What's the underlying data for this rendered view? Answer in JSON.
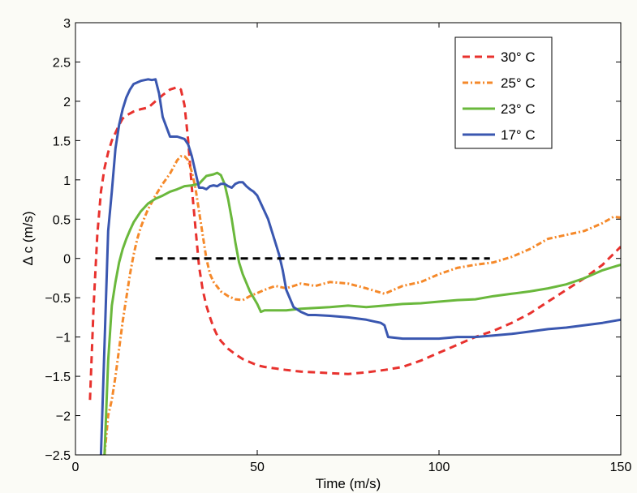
{
  "chart_data": {
    "type": "line",
    "xlabel": "Time (m/s)",
    "ylabel": "Δ c (m/s)",
    "xlim": [
      0,
      150
    ],
    "ylim": [
      -2.5,
      3
    ],
    "xticks": [
      "0",
      "50",
      "100",
      "150"
    ],
    "xtick_values": [
      0,
      50,
      100,
      150
    ],
    "yticks": [
      "−2.5",
      "−2",
      "−1.5",
      "−1",
      "−0.5",
      "0",
      "0.5",
      "1",
      "1.5",
      "2",
      "2.5",
      "3"
    ],
    "ytick_values": [
      -2.5,
      -2,
      -1.5,
      -1,
      -0.5,
      0,
      0.5,
      1,
      1.5,
      2,
      2.5,
      3
    ],
    "grid": false,
    "legend_position": "top-right",
    "reference_line": {
      "x": [
        22,
        114
      ],
      "y": 0,
      "color": "#000000",
      "style": "dashed"
    },
    "series": [
      {
        "name": "30° C",
        "color": "#e8322e",
        "style": "dashed",
        "x": [
          4,
          5,
          6,
          7,
          8,
          9,
          10,
          11,
          12,
          13,
          14,
          16,
          18,
          20,
          22,
          24,
          26,
          28,
          29,
          30,
          31,
          32,
          33,
          34,
          35,
          36,
          37,
          38,
          39,
          40,
          42,
          44,
          46,
          48,
          50,
          52,
          55,
          58,
          62,
          66,
          70,
          75,
          80,
          85,
          90,
          95,
          100,
          105,
          110,
          115,
          120,
          125,
          130,
          135,
          140,
          145,
          150
        ],
        "y": [
          -1.8,
          -0.6,
          0.3,
          0.85,
          1.15,
          1.35,
          1.5,
          1.6,
          1.7,
          1.78,
          1.82,
          1.87,
          1.9,
          1.92,
          2.0,
          2.08,
          2.15,
          2.18,
          2.15,
          1.95,
          1.5,
          0.9,
          0.4,
          -0.1,
          -0.4,
          -0.6,
          -0.75,
          -0.88,
          -0.98,
          -1.05,
          -1.15,
          -1.22,
          -1.28,
          -1.32,
          -1.36,
          -1.38,
          -1.4,
          -1.42,
          -1.44,
          -1.45,
          -1.46,
          -1.47,
          -1.45,
          -1.42,
          -1.38,
          -1.3,
          -1.2,
          -1.1,
          -1.0,
          -0.92,
          -0.82,
          -0.7,
          -0.55,
          -0.4,
          -0.25,
          -0.08,
          0.15
        ]
      },
      {
        "name": "25° C",
        "color": "#f5892a",
        "style": "dash-dot",
        "x": [
          8,
          9,
          10,
          11,
          12,
          13,
          14,
          15,
          16,
          17,
          18,
          19,
          20,
          22,
          24,
          26,
          28,
          29,
          30,
          31,
          32,
          33,
          34,
          35,
          36,
          37,
          38,
          40,
          42,
          44,
          46,
          48,
          50,
          52,
          55,
          58,
          62,
          66,
          70,
          75,
          80,
          85,
          90,
          95,
          100,
          105,
          110,
          115,
          120,
          125,
          130,
          135,
          140,
          145,
          148,
          150
        ],
        "y": [
          -2.5,
          -2.0,
          -1.8,
          -1.5,
          -1.15,
          -0.8,
          -0.5,
          -0.2,
          0.05,
          0.25,
          0.4,
          0.52,
          0.63,
          0.8,
          0.95,
          1.08,
          1.25,
          1.3,
          1.3,
          1.25,
          1.1,
          0.9,
          0.6,
          0.3,
          0.0,
          -0.2,
          -0.3,
          -0.42,
          -0.48,
          -0.52,
          -0.53,
          -0.48,
          -0.44,
          -0.4,
          -0.35,
          -0.38,
          -0.32,
          -0.35,
          -0.3,
          -0.32,
          -0.38,
          -0.45,
          -0.35,
          -0.3,
          -0.2,
          -0.12,
          -0.08,
          -0.05,
          0.02,
          0.12,
          0.25,
          0.3,
          0.35,
          0.45,
          0.53,
          0.52
        ]
      },
      {
        "name": "23° C",
        "color": "#6ab83c",
        "style": "solid",
        "x": [
          8,
          9,
          10,
          11,
          12,
          13,
          14,
          15,
          16,
          18,
          20,
          22,
          24,
          26,
          28,
          30,
          32,
          34,
          35,
          36,
          38,
          39,
          40,
          41,
          42,
          43,
          44,
          45,
          46,
          48,
          50,
          51,
          52,
          55,
          58,
          62,
          66,
          70,
          75,
          80,
          85,
          90,
          95,
          100,
          105,
          110,
          115,
          120,
          125,
          130,
          135,
          140,
          145,
          150
        ],
        "y": [
          -2.5,
          -1.3,
          -0.6,
          -0.3,
          -0.05,
          0.12,
          0.25,
          0.36,
          0.46,
          0.6,
          0.7,
          0.76,
          0.8,
          0.85,
          0.88,
          0.92,
          0.93,
          0.95,
          1.0,
          1.05,
          1.07,
          1.09,
          1.06,
          0.95,
          0.75,
          0.5,
          0.2,
          -0.05,
          -0.2,
          -0.42,
          -0.58,
          -0.68,
          -0.66,
          -0.66,
          -0.66,
          -0.64,
          -0.63,
          -0.62,
          -0.6,
          -0.62,
          -0.6,
          -0.58,
          -0.57,
          -0.55,
          -0.53,
          -0.52,
          -0.48,
          -0.45,
          -0.42,
          -0.38,
          -0.33,
          -0.25,
          -0.15,
          -0.08
        ]
      },
      {
        "name": "17° C",
        "color": "#3a57b0",
        "style": "solid",
        "x": [
          7,
          8,
          9,
          10,
          11,
          12,
          13,
          14,
          15,
          16,
          18,
          20,
          21,
          22,
          23,
          24,
          26,
          28,
          30,
          31,
          32,
          33,
          34,
          35,
          36,
          37,
          38,
          39,
          40,
          41,
          42,
          43,
          44,
          45,
          46,
          47,
          48,
          49,
          50,
          51,
          52,
          53,
          54,
          55,
          56,
          57,
          58,
          60,
          62,
          64,
          66,
          70,
          75,
          80,
          82,
          84,
          85,
          86,
          90,
          95,
          100,
          105,
          110,
          115,
          120,
          125,
          130,
          135,
          140,
          145,
          150
        ],
        "y": [
          -2.5,
          -1.1,
          0.35,
          0.85,
          1.4,
          1.7,
          1.9,
          2.05,
          2.15,
          2.22,
          2.26,
          2.28,
          2.27,
          2.28,
          2.1,
          1.8,
          1.55,
          1.55,
          1.52,
          1.45,
          1.3,
          1.1,
          0.9,
          0.9,
          0.88,
          0.92,
          0.93,
          0.92,
          0.95,
          0.95,
          0.92,
          0.9,
          0.95,
          0.97,
          0.97,
          0.92,
          0.88,
          0.85,
          0.8,
          0.7,
          0.6,
          0.5,
          0.35,
          0.2,
          0.05,
          -0.15,
          -0.4,
          -0.62,
          -0.68,
          -0.72,
          -0.72,
          -0.73,
          -0.75,
          -0.78,
          -0.8,
          -0.82,
          -0.85,
          -1.0,
          -1.02,
          -1.02,
          -1.02,
          -1.0,
          -1.0,
          -0.98,
          -0.96,
          -0.93,
          -0.9,
          -0.88,
          -0.85,
          -0.82,
          -0.78
        ]
      }
    ]
  }
}
